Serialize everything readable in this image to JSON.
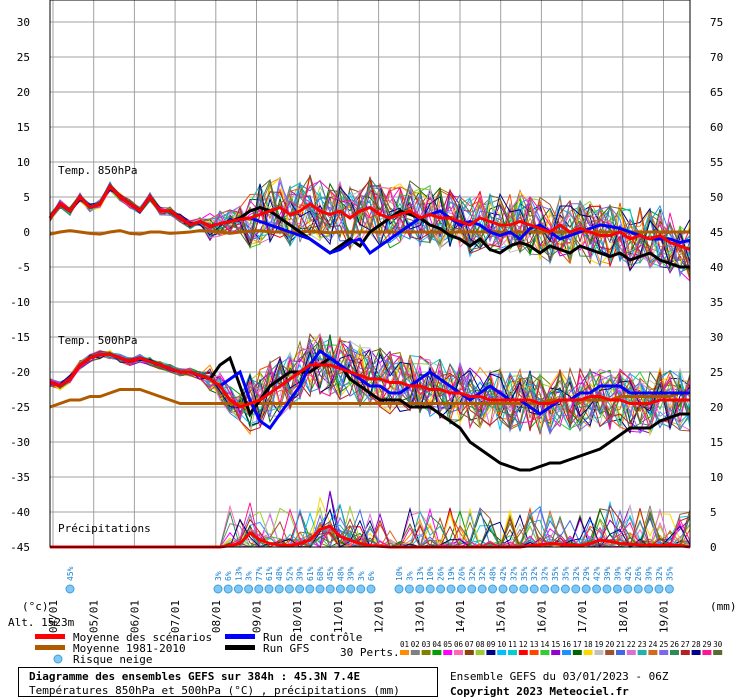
{
  "chart_data": {
    "type": "line",
    "panels": [
      {
        "title": "Temp. 850hPa",
        "mean_scenarios": [
          2,
          4,
          3,
          5,
          3.5,
          4,
          6.5,
          5,
          4,
          3,
          5,
          3,
          3,
          2,
          1,
          1.5,
          0.8,
          1.2,
          1.5,
          1.8,
          2,
          2.5,
          3,
          3.5,
          2.5,
          3,
          4,
          3,
          2.5,
          3,
          2,
          3,
          3.5,
          2.5,
          2,
          2.5,
          3,
          2,
          2.5,
          2,
          2,
          1.5,
          1,
          2,
          1.5,
          1,
          1,
          1.5,
          1,
          0.5,
          0,
          1,
          0,
          0.5,
          0,
          -0.5,
          -0.5,
          0,
          -1,
          -0.5,
          -1,
          -0.5,
          -1.5,
          -2,
          -2.5
        ],
        "normal_1981_2010": [
          -0.3,
          0,
          0.2,
          0,
          -0.2,
          -0.3,
          0,
          0.2,
          -0.2,
          -0.3,
          0,
          0,
          -0.2,
          -0.1,
          0,
          0.2,
          0.1,
          0,
          -0.2,
          0,
          0.1,
          0.2,
          0,
          0,
          0,
          0,
          0.1,
          0,
          -0.1,
          0,
          0,
          0,
          0,
          0,
          0,
          0,
          0,
          0,
          0,
          0,
          0,
          0,
          0,
          0,
          0,
          0,
          0,
          0,
          0,
          0,
          0,
          0,
          0,
          0,
          0,
          0,
          0,
          0,
          0,
          0,
          0,
          0,
          0,
          0,
          0
        ],
        "control_run": [
          2,
          4,
          3,
          5,
          3.5,
          4,
          6.5,
          5,
          4,
          3,
          5,
          3,
          3,
          2,
          1,
          1.5,
          0.8,
          1.2,
          1.5,
          1.8,
          2,
          1.5,
          1,
          0.5,
          0,
          -0.5,
          -1,
          -2,
          -3,
          -2.5,
          -1.5,
          -1,
          -3,
          -2,
          -1,
          0,
          1,
          2,
          2.5,
          3,
          2,
          1,
          1.5,
          1,
          0,
          -0.5,
          0,
          -1,
          0.5,
          1,
          0,
          -1,
          -0.5,
          0,
          0.5,
          1,
          0.8,
          0.5,
          0,
          -0.5,
          -1,
          -1,
          -1,
          -1.5,
          -1.2
        ],
        "gfs_run": [
          2,
          4,
          3,
          5,
          3.5,
          4,
          6.5,
          5,
          4,
          3,
          5,
          3,
          3,
          2,
          1,
          1.5,
          0.8,
          1.2,
          1.5,
          2,
          3,
          3.5,
          3,
          2,
          1,
          0,
          -1,
          -2,
          -3,
          -2,
          -1,
          -2,
          0,
          1,
          2,
          3,
          2.5,
          2,
          1,
          0.5,
          -0.5,
          -1,
          -2,
          -1,
          -2.5,
          -3,
          -2,
          -1.5,
          -2,
          -3,
          -2,
          -2.5,
          -3,
          -2,
          -2.5,
          -3,
          -3.5,
          -3,
          -4,
          -3.5,
          -3,
          -4,
          -4.5,
          -5,
          -5
        ]
      },
      {
        "title": "Temp. 500hPa",
        "mean_scenarios": [
          -21.5,
          -22,
          -21,
          -19,
          -18,
          -17.5,
          -17.5,
          -18,
          -18.5,
          -18,
          -18.5,
          -19,
          -19.5,
          -20,
          -20,
          -20.5,
          -21,
          -22,
          -24,
          -25,
          -24.5,
          -24,
          -23,
          -22,
          -21,
          -20,
          -19,
          -19,
          -19,
          -19.5,
          -20,
          -20.5,
          -21,
          -21,
          -21.5,
          -21.5,
          -22,
          -22,
          -22.5,
          -22.5,
          -23,
          -23,
          -23.5,
          -23.5,
          -24,
          -24,
          -24,
          -24,
          -24,
          -24.5,
          -24.5,
          -24,
          -24,
          -24,
          -23.5,
          -23.5,
          -24,
          -24,
          -24.5,
          -24.5,
          -24.5,
          -24,
          -24,
          -24,
          -24
        ],
        "normal_1981_2010": [
          -25,
          -24.5,
          -24,
          -24,
          -23.5,
          -23.5,
          -23,
          -22.5,
          -22.5,
          -22.5,
          -23,
          -23.5,
          -24,
          -24.5,
          -24.5,
          -24.5,
          -24.5,
          -24.5,
          -24.5,
          -24.5,
          -24.5,
          -24.5,
          -24.5,
          -24.5,
          -24.5,
          -24.5,
          -24.5,
          -24.5,
          -24.5,
          -24.5,
          -24.5,
          -24.5,
          -24.5,
          -24.5,
          -24.5,
          -24.5,
          -24.5,
          -24.5,
          -24.5,
          -24.5,
          -24.5,
          -24.5,
          -24.5,
          -24.5,
          -24.5,
          -24.5,
          -24.5,
          -24.5,
          -24.5,
          -24.5,
          -24,
          -24,
          -24,
          -24,
          -24,
          -24,
          -24,
          -23.5,
          -23.5,
          -23.5,
          -23.5,
          -23.5,
          -23.5,
          -23,
          -23
        ],
        "control_run": [
          -21.5,
          -22,
          -21,
          -19,
          -18,
          -17.5,
          -17.5,
          -18,
          -18.5,
          -18,
          -18.5,
          -19,
          -19.5,
          -20,
          -20,
          -20.5,
          -21,
          -22,
          -21,
          -20,
          -24,
          -27,
          -28,
          -26,
          -24,
          -22,
          -19,
          -17,
          -18,
          -19,
          -20,
          -21,
          -22,
          -22,
          -23,
          -23,
          -22,
          -21,
          -20,
          -21,
          -22,
          -23,
          -24,
          -23,
          -22,
          -23,
          -24,
          -24,
          -25,
          -26,
          -25,
          -24,
          -24,
          -23,
          -23,
          -22,
          -22,
          -22,
          -23,
          -23,
          -23,
          -23,
          -23,
          -23,
          -23
        ],
        "gfs_run": [
          -21.5,
          -22,
          -21,
          -19,
          -18,
          -17.5,
          -17.5,
          -18,
          -18.5,
          -18,
          -18.5,
          -19,
          -19.5,
          -20,
          -20,
          -20.5,
          -21,
          -19,
          -18,
          -22,
          -26,
          -24,
          -22,
          -21,
          -20,
          -20,
          -20,
          -19,
          -18,
          -19,
          -21,
          -22,
          -23,
          -24,
          -24,
          -24,
          -25,
          -25,
          -25,
          -26,
          -27,
          -28,
          -30,
          -31,
          -32,
          -33,
          -33.5,
          -34,
          -34,
          -33.5,
          -33,
          -33,
          -32.5,
          -32,
          -31.5,
          -31,
          -30,
          -29,
          -28,
          -28,
          -28,
          -27,
          -26.5,
          -26,
          -26
        ]
      },
      {
        "title": "Précipitations",
        "mean_scenarios": [
          0,
          0,
          0,
          0,
          0,
          0,
          0,
          0,
          0,
          0,
          0,
          0,
          0,
          0,
          0,
          0,
          0,
          0,
          0.2,
          0.5,
          2,
          1,
          0.5,
          0.3,
          0.2,
          0.5,
          1,
          2.5,
          3,
          1.5,
          1,
          0.5,
          0.2,
          0.1,
          0,
          0,
          0,
          0,
          0,
          0,
          0,
          0,
          0,
          0,
          0,
          0,
          0,
          0,
          0.2,
          0.3,
          0.5,
          0.4,
          0.3,
          0.2,
          0.5,
          1,
          0.8,
          0.5,
          0.4,
          0.3,
          0.3,
          0.2,
          0.3,
          0.2,
          0
        ]
      }
    ],
    "left_y_ticks": [
      "30",
      "25",
      "20",
      "15",
      "10",
      "5",
      "0",
      "-5",
      "-10",
      "-15",
      "-20",
      "-25",
      "-30",
      "-35",
      "-40",
      "-45"
    ],
    "right_y_ticks": [
      "75",
      "70",
      "65",
      "60",
      "55",
      "50",
      "45",
      "40",
      "35",
      "30",
      "25",
      "20",
      "15",
      "10",
      "5",
      "0"
    ],
    "x_ticks": [
      "04/01",
      "05/01",
      "06/01",
      "07/01",
      "08/01",
      "09/01",
      "10/01",
      "11/01",
      "12/01",
      "13/01",
      "14/01",
      "15/01",
      "16/01",
      "17/01",
      "18/01",
      "19/01"
    ],
    "snow_risk_group1": [
      "45%"
    ],
    "snow_risk_group2": [
      "3%",
      "6%",
      "13%",
      "3%",
      "77%",
      "61%",
      "48%",
      "52%",
      "39%",
      "61%",
      "68%",
      "45%",
      "48%",
      "39%",
      "3%",
      "6%"
    ],
    "snow_risk_group3": [
      "10%",
      "3%",
      "13%",
      "10%",
      "26%",
      "19%",
      "26%",
      "32%",
      "32%",
      "48%",
      "42%",
      "32%",
      "35%",
      "32%",
      "32%",
      "35%",
      "35%",
      "32%",
      "29%",
      "42%",
      "39%",
      "39%",
      "42%",
      "26%",
      "39%",
      "32%",
      "35%"
    ],
    "left_unit": "(°c)",
    "right_unit": "(mm)",
    "altitude": "Alt. 1523m",
    "legend": {
      "mean": "Moyenne des scénarios",
      "normal": "Moyenne 1981-2010",
      "snow": "Risque neige",
      "control": "Run de contrôle",
      "gfs": "Run GFS",
      "perts_label": "30 Perts."
    },
    "pert_numbers": [
      "01",
      "02",
      "03",
      "04",
      "05",
      "06",
      "07",
      "08",
      "09",
      "10",
      "11",
      "12",
      "13",
      "14",
      "15",
      "16",
      "17",
      "18",
      "19",
      "20",
      "21",
      "22",
      "23",
      "24",
      "25",
      "26",
      "27",
      "28",
      "29",
      "30"
    ],
    "pert_colors": [
      "#ff8c00",
      "#808080",
      "#808000",
      "#00a000",
      "#ff00ff",
      "#ff69b4",
      "#8b4513",
      "#9acd32",
      "#000080",
      "#00bfff",
      "#00ced1",
      "#ff0000",
      "#ff4500",
      "#32cd32",
      "#9400d3",
      "#1e90ff",
      "#006400",
      "#ffd700",
      "#c0c0c0",
      "#a0522d",
      "#4169e1",
      "#da70d6",
      "#20b2aa",
      "#d2691e",
      "#7b68ee",
      "#2e8b57",
      "#b22222",
      "#00008b",
      "#ff1493",
      "#556b2f"
    ],
    "colors": {
      "mean": "#ff0000",
      "normal": "#b05a00",
      "control": "#0000ff",
      "gfs": "#000000",
      "snow": "#7fc8f8"
    }
  },
  "info": {
    "title": "Diagramme des ensembles GEFS sur 384h : 45.3N 7.4E",
    "subtitle": "Températures 850hPa et 500hPa (°C) , précipitations (mm)",
    "ensemble": "Ensemble GEFS du 03/01/2023 - 06Z",
    "copyright": "Copyright 2023 Meteociel.fr"
  }
}
